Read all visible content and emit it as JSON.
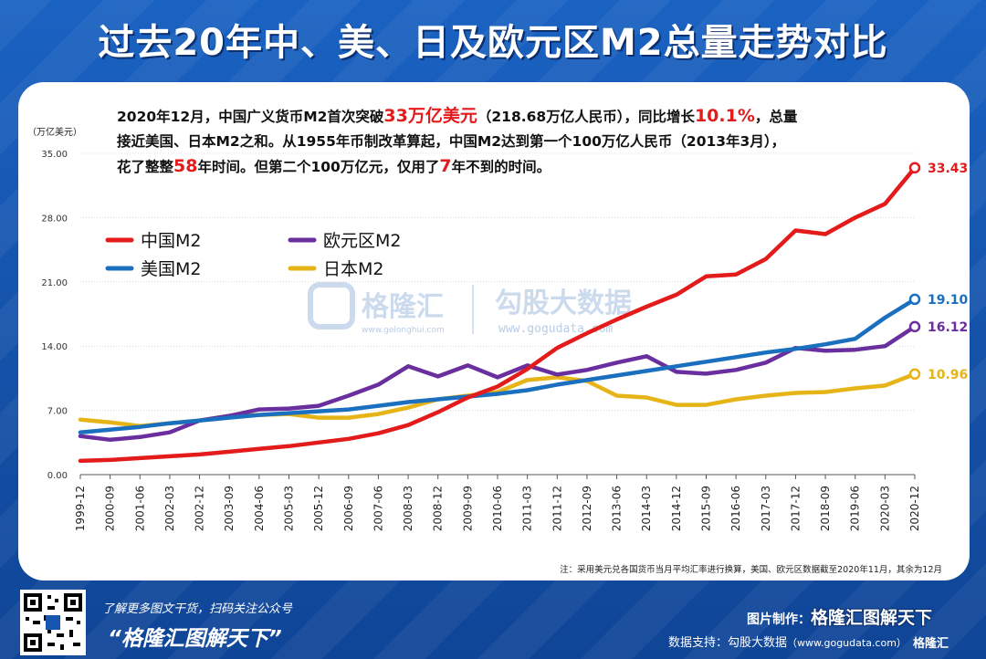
{
  "title": "过去20年中、美、日及欧元区M2总量走势对比",
  "note": {
    "line1_a": "2020年12月，中国广义货币M2首次突破",
    "line1_hl1": "33万亿美元",
    "line1_b": "（218.68万亿人民币），同比增长",
    "line1_hl2": "10.1%",
    "line1_c": "，总量",
    "line2": "接近美国、日本M2之和。从1955年币制改革算起，中国M2达到第一个100万亿人民币（2013年3月），",
    "line3_a": "花了整整",
    "line3_hl1": "58",
    "line3_b": "年时间。但第二个100万亿元，仅用了",
    "line3_hl2": "7",
    "line3_c": "年不到的时间。"
  },
  "footnote": "注：采用美元兑各国货币当月平均汇率进行换算，美国、欧元区数据截至2020年11月，其余为12月",
  "watermarks": {
    "gelonghui": "格隆汇",
    "gelonghui_url": "www.gelonghui.com",
    "gogudata": "勾股大数据",
    "gogudata_url": "www.gogudata.com"
  },
  "footer": {
    "cta": "了解更多图文干货，扫码关注公众号",
    "slogan": "“格隆汇图解天下”",
    "credit_label": "图片制作：",
    "credit_brand": "格隆汇图解天下",
    "data_label": "数据支持：勾股大数据",
    "data_url": "（www.gogudata.com）",
    "logo": "格隆汇"
  },
  "colors": {
    "china": "#e31b1b",
    "euro": "#6a2f9e",
    "usa": "#1a6fbf",
    "japan": "#e6b416",
    "background": "#1557b0"
  },
  "chart_data": {
    "type": "line",
    "ylabel": "（万亿美元）",
    "ylim": [
      0,
      35
    ],
    "yticks": [
      "0.00",
      "7.00",
      "14.00",
      "21.00",
      "28.00",
      "35.00"
    ],
    "xticks": [
      "1999-12",
      "2000-09",
      "2001-06",
      "2002-03",
      "2002-12",
      "2003-09",
      "2004-06",
      "2005-03",
      "2005-12",
      "2006-09",
      "2007-06",
      "2008-03",
      "2008-12",
      "2009-09",
      "2010-06",
      "2011-03",
      "2011-12",
      "2012-09",
      "2013-06",
      "2014-03",
      "2014-12",
      "2015-09",
      "2016-06",
      "2017-03",
      "2017-12",
      "2018-09",
      "2019-06",
      "2020-03",
      "2020-12"
    ],
    "grid": "horizontal",
    "legend_position": "top-left",
    "series": [
      {
        "name": "中国M2",
        "color": "#e31b1b",
        "end_label": "33.43",
        "values": [
          1.5,
          1.6,
          1.8,
          2.0,
          2.2,
          2.5,
          2.8,
          3.1,
          3.5,
          3.9,
          4.5,
          5.4,
          6.8,
          8.4,
          9.6,
          11.5,
          13.8,
          15.4,
          16.9,
          18.3,
          19.6,
          21.6,
          21.8,
          23.5,
          26.6,
          26.2,
          28.0,
          29.5,
          33.43
        ]
      },
      {
        "name": "欧元区M2",
        "color": "#6a2f9e",
        "end_label": "16.12",
        "values": [
          4.2,
          3.8,
          4.1,
          4.6,
          5.9,
          6.4,
          7.1,
          7.2,
          7.5,
          8.6,
          9.8,
          11.8,
          10.7,
          11.9,
          10.6,
          11.9,
          10.9,
          11.4,
          12.2,
          12.9,
          11.2,
          11.0,
          11.4,
          12.2,
          13.8,
          13.5,
          13.6,
          14.0,
          16.12
        ]
      },
      {
        "name": "美国M2",
        "color": "#1a6fbf",
        "end_label": "19.10",
        "values": [
          4.6,
          4.9,
          5.2,
          5.6,
          5.9,
          6.2,
          6.5,
          6.7,
          6.9,
          7.1,
          7.5,
          7.9,
          8.2,
          8.5,
          8.8,
          9.2,
          9.8,
          10.3,
          10.8,
          11.3,
          11.8,
          12.3,
          12.8,
          13.3,
          13.7,
          14.2,
          14.8,
          17.1,
          19.1
        ]
      },
      {
        "name": "日本M2",
        "color": "#e6b416",
        "end_label": "10.96",
        "values": [
          6.0,
          5.7,
          5.3,
          5.6,
          5.9,
          6.4,
          6.5,
          6.6,
          6.2,
          6.2,
          6.6,
          7.3,
          8.2,
          8.6,
          9.0,
          10.3,
          10.6,
          10.2,
          8.6,
          8.4,
          7.6,
          7.6,
          8.2,
          8.6,
          8.9,
          9.0,
          9.4,
          9.7,
          10.96
        ]
      }
    ]
  }
}
